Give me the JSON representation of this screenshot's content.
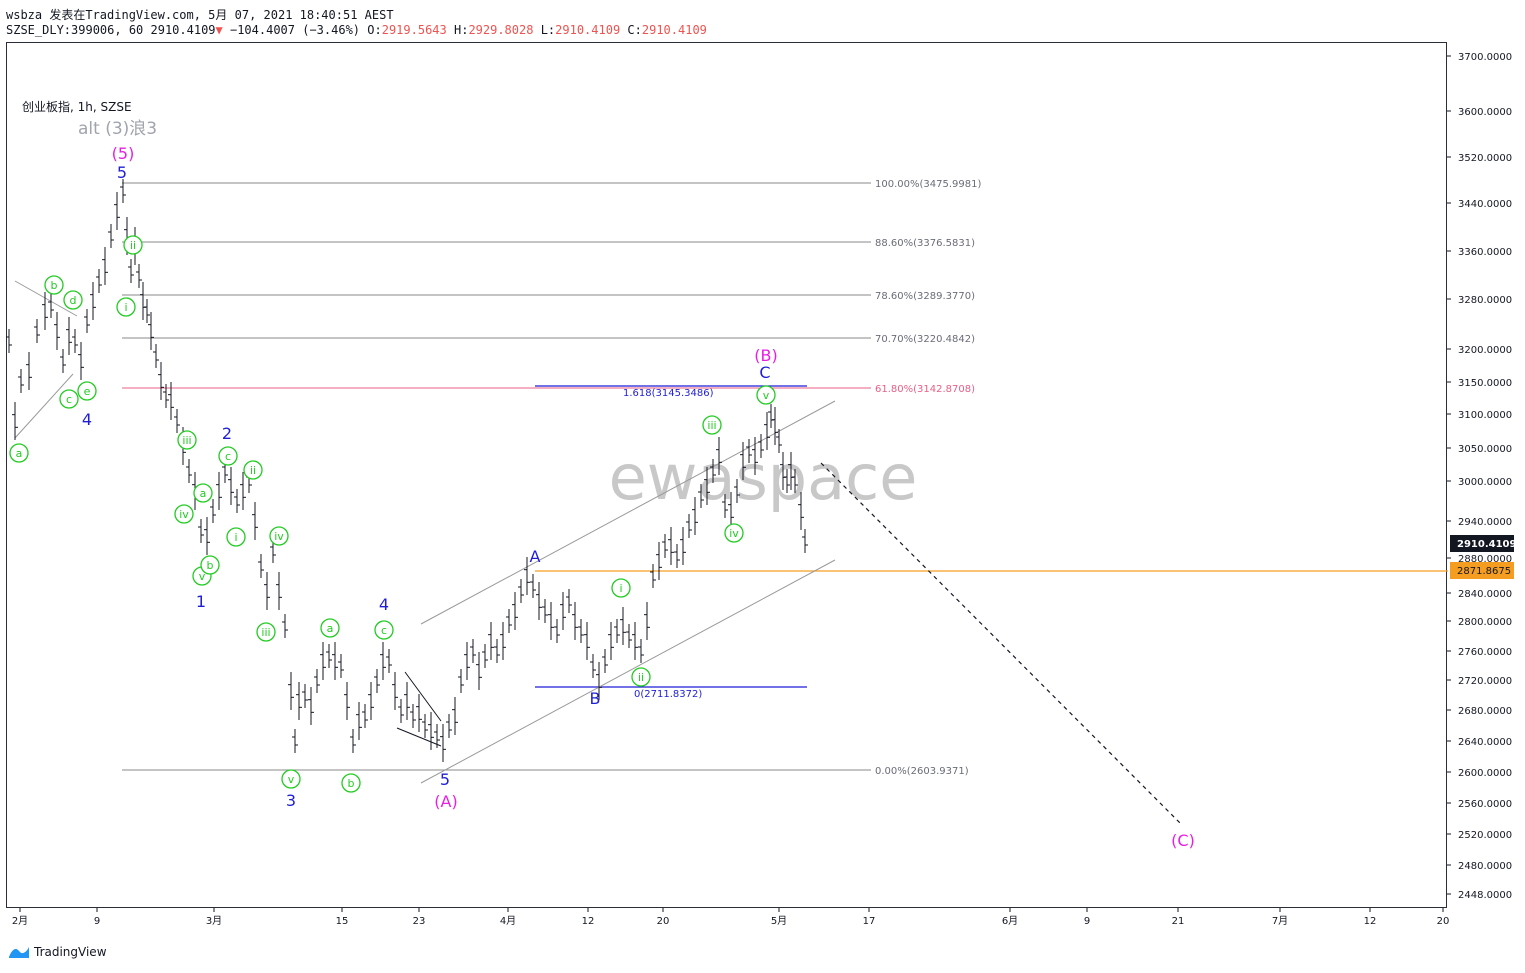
{
  "header": {
    "line1": "wsbza 发表在TradingView.com, 5月 07, 2021 18:40:51 AEST",
    "line2_prefix": "SZSE_DLY:399006, 60 2910.4109",
    "change": "−104.4007 (−3.46%)",
    "ohlc": [
      {
        "label": "O:",
        "value": "2919.5643"
      },
      {
        "label": "H:",
        "value": "2929.8028"
      },
      {
        "label": "L:",
        "value": "2910.4109"
      },
      {
        "label": "C:",
        "value": "2910.4109"
      }
    ]
  },
  "symbol_title": "创业板指, 1h, SZSE",
  "watermark": "ewaspace",
  "alt_label": "alt (3)浪3",
  "price_axis": [
    "3700.0000",
    "3600.0000",
    "3520.0000",
    "3440.0000",
    "3360.0000",
    "3280.0000",
    "3200.0000",
    "3150.0000",
    "3100.0000",
    "3050.0000",
    "3000.0000",
    "2940.0000",
    "2880.0000",
    "2840.0000",
    "2800.0000",
    "2760.0000",
    "2720.0000",
    "2680.0000",
    "2640.0000",
    "2600.0000",
    "2560.0000",
    "2520.0000",
    "2480.0000",
    "2448.0000"
  ],
  "price_badges": {
    "last": "2910.4109",
    "hline": "2871.8675"
  },
  "time_axis": [
    "2月",
    "9",
    "3月",
    "15",
    "23",
    "4月",
    "12",
    "20",
    "5月",
    "17",
    "6月",
    "9",
    "21",
    "7月",
    "12",
    "20"
  ],
  "fib_levels": [
    "100.00%(3475.9981)",
    "88.60%(3376.5831)",
    "78.60%(3289.3770)",
    "70.70%(3220.4842)",
    "61.80%(3142.8708)",
    "0.00%(2603.9371)"
  ],
  "ext_levels": [
    "1.618(3145.3486)",
    "0(2711.8372)"
  ],
  "wave_labels": {
    "blue": [
      "5",
      "4",
      "2",
      "1",
      "3",
      "4",
      "5",
      "A",
      "B",
      "C"
    ],
    "magenta": [
      "(5)",
      "(A)",
      "(B)",
      "(C)"
    ],
    "green": [
      "a",
      "b",
      "c",
      "d",
      "e",
      "i",
      "ii",
      "iii",
      "iv",
      "v",
      "a",
      "b",
      "c",
      "i",
      "ii",
      "iii",
      "iv",
      "v",
      "a",
      "b",
      "c",
      "i",
      "ii",
      "iii",
      "iv",
      "v"
    ]
  },
  "colors": {
    "blue": "#1f1fd6",
    "magenta": "#e91ee3",
    "green": "#22cc22",
    "fib_red": "#e85f86",
    "orange": "#f59d21",
    "bars": "#131722"
  },
  "footer": {
    "brand": "TradingView"
  }
}
